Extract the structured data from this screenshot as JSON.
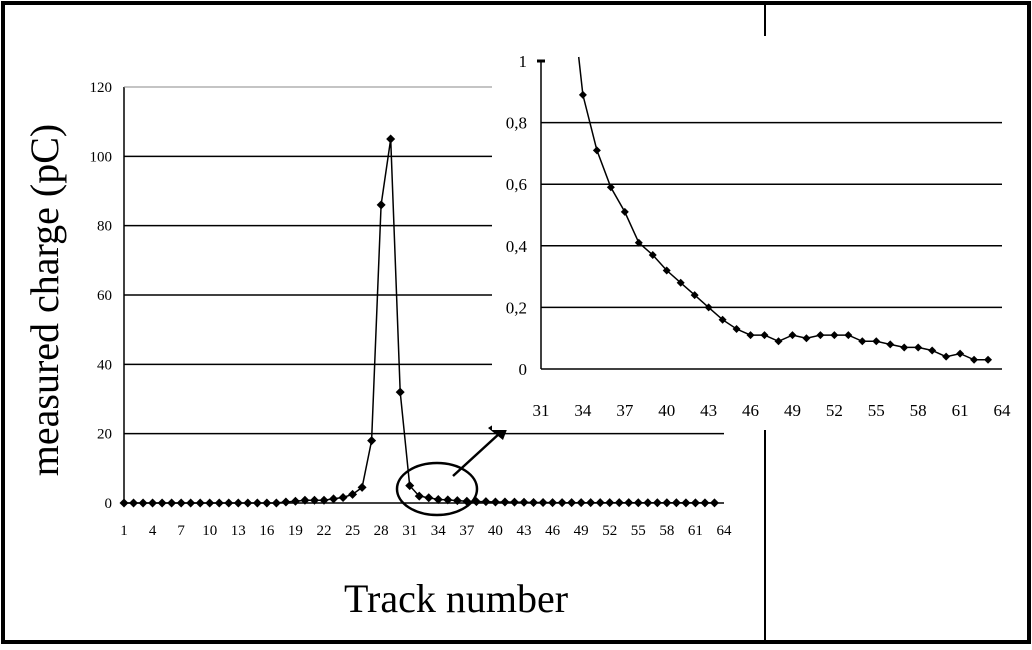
{
  "chart_data": [
    {
      "type": "line",
      "ylabel": "measured charge (pC)",
      "xlabel": "Track number",
      "ylim": [
        0,
        120
      ],
      "yticks": [
        0,
        20,
        40,
        60,
        80,
        100,
        120
      ],
      "xticks": [
        "1",
        "4",
        "7",
        "10",
        "13",
        "16",
        "19",
        "22",
        "25",
        "28",
        "31",
        "34",
        "37",
        "40",
        "43",
        "46",
        "49",
        "52",
        "55",
        "58",
        "61",
        "64"
      ],
      "grid": "horizontal",
      "marker": "diamond",
      "series": [
        {
          "x": [
            1,
            2,
            3,
            4,
            5,
            6,
            7,
            8,
            9,
            10,
            11,
            12,
            13,
            14,
            15,
            16,
            17,
            18,
            19,
            20,
            21,
            22,
            23,
            24,
            25,
            26,
            27,
            28,
            29,
            30,
            31,
            32,
            33,
            34,
            35,
            36,
            37,
            38,
            39,
            40,
            41,
            42,
            43,
            44,
            45,
            46,
            47,
            48,
            49,
            50,
            51,
            52,
            53,
            54,
            55,
            56,
            57,
            58,
            59,
            60,
            61,
            62,
            63
          ],
          "y": [
            0,
            0,
            0,
            0,
            0,
            0,
            0,
            0,
            0,
            0,
            0,
            0,
            0,
            0,
            0,
            0,
            0,
            0.3,
            0.5,
            0.8,
            0.8,
            0.8,
            1.2,
            1.6,
            2.5,
            4.5,
            18,
            86,
            105,
            32,
            5,
            2,
            1.5,
            1,
            0.9,
            0.7,
            0.5,
            0.4,
            0.4,
            0.3,
            0.3,
            0.25,
            0.2,
            0.15,
            0.13,
            0.11,
            0.1,
            0.1,
            0.1,
            0.1,
            0.1,
            0.1,
            0.1,
            0.1,
            0.08,
            0.08,
            0.07,
            0.07,
            0.06,
            0.04,
            0.05,
            0.03,
            0.03
          ]
        }
      ]
    },
    {
      "type": "line",
      "ylim": [
        0,
        1
      ],
      "yticks": [
        "0",
        "0,2",
        "0,4",
        "0,6",
        "0,8",
        "1"
      ],
      "xticks": [
        "31",
        "34",
        "37",
        "40",
        "43",
        "46",
        "49",
        "52",
        "55",
        "58",
        "61",
        "64"
      ],
      "xlim": [
        31,
        64
      ],
      "grid": "horizontal",
      "marker": "diamond",
      "series": [
        {
          "x": [
            34,
            35,
            36,
            37,
            38,
            39,
            40,
            41,
            42,
            43,
            44,
            45,
            46,
            47,
            48,
            49,
            50,
            51,
            52,
            53,
            54,
            55,
            56,
            57,
            58,
            59,
            60,
            61,
            62,
            63
          ],
          "y": [
            0.89,
            0.71,
            0.59,
            0.51,
            0.41,
            0.37,
            0.32,
            0.28,
            0.24,
            0.2,
            0.16,
            0.13,
            0.11,
            0.11,
            0.09,
            0.11,
            0.1,
            0.11,
            0.11,
            0.11,
            0.09,
            0.09,
            0.08,
            0.07,
            0.07,
            0.06,
            0.04,
            0.05,
            0.03,
            0.03
          ]
        }
      ]
    }
  ]
}
